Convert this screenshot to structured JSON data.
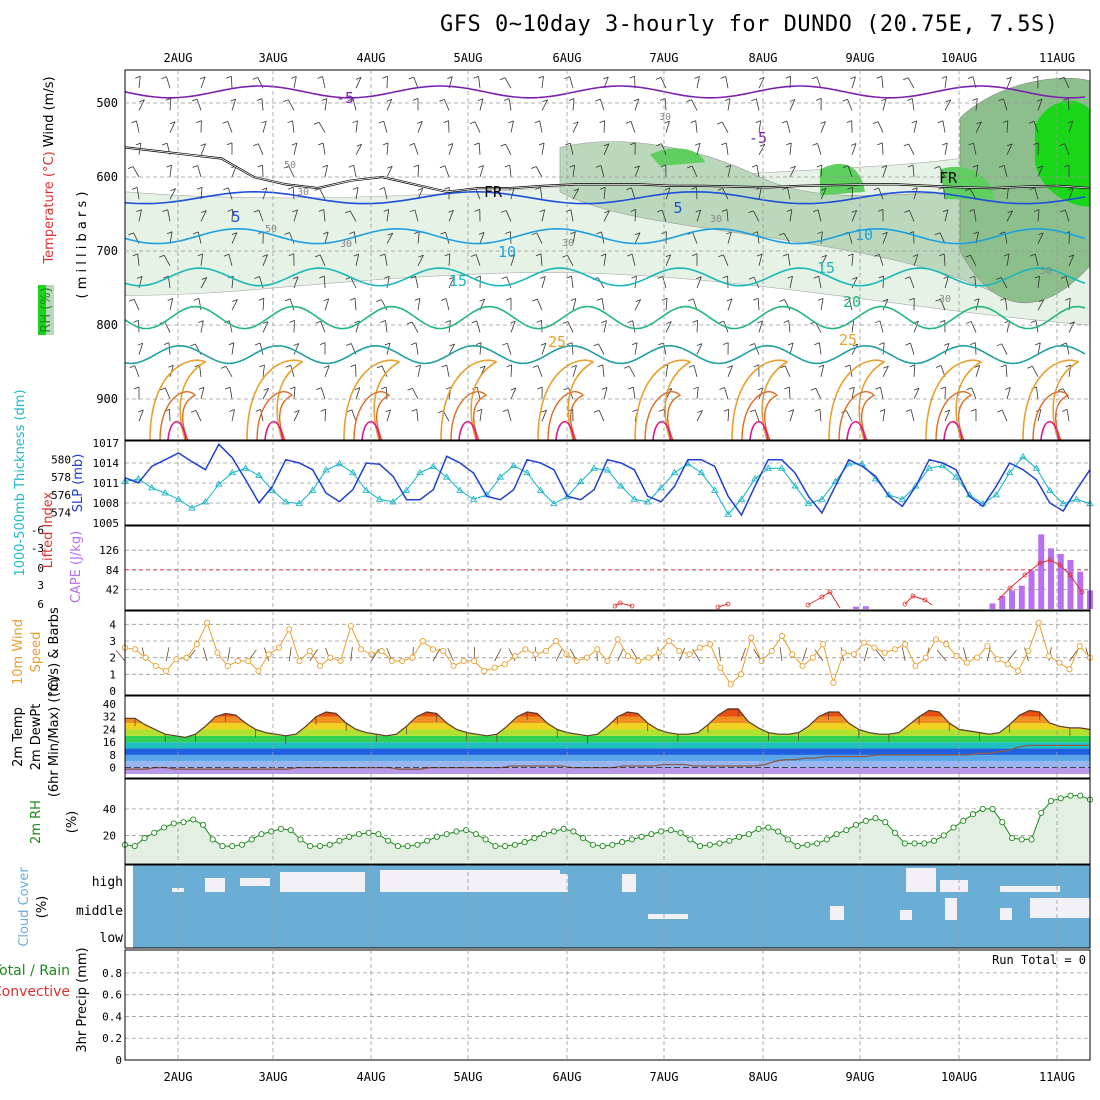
{
  "title": "GFS 0~10day 3-hourly for DUNDO (20.75E, 7.5S)",
  "dates": [
    "2AUG",
    "3AUG",
    "4AUG",
    "5AUG",
    "6AUG",
    "7AUG",
    "8AUG",
    "9AUG",
    "10AUG",
    "11AUG"
  ],
  "colors": {
    "purple": "#7a1fb0",
    "blue": "#1f4fd8",
    "cyan": "#1ea0e0",
    "teal": "#18b8b8",
    "green": "#1fb87a",
    "orange": "#e8a030",
    "magenta": "#e0188a",
    "rh_light": "#e6f2e6",
    "rh_mid": "#bcd8bc",
    "rh_dark": "#8cbf8c",
    "rh_bright": "#19d619",
    "slp_line": "#1f3fd0",
    "thick_line": "#20b8c8",
    "cape_bar": "#b870f0",
    "li_line": "#e03030",
    "wind_line": "#e8a030",
    "barb": "#6a4a2a",
    "rh2m_line": "#1a8a1a",
    "cloud": "#6aaed6",
    "dew_line": "#8a5a4a"
  },
  "chart_data": [
    {
      "type": "line",
      "panel": "upper_air",
      "ylabel_parts": [
        "RH (%)",
        "Temperature (°C)",
        "Wind (m/s)",
        "( m i l l i b a r s )"
      ],
      "yticks": [
        500,
        600,
        700,
        800,
        900
      ],
      "ylim": [
        950,
        450
      ],
      "contour_labels": [
        "-5",
        "-5",
        "FR",
        "FR",
        "5",
        "5",
        "10",
        "10",
        "15",
        "15",
        "20",
        "25",
        "25",
        "30",
        "30",
        "30",
        "30",
        "30",
        "30",
        "50",
        "50",
        "50"
      ],
      "freezing_level_mb": [
        560,
        565,
        570,
        575,
        600,
        610,
        615,
        605,
        600,
        610,
        620,
        615,
        615,
        612,
        610,
        610,
        610,
        612,
        612,
        613,
        614,
        612,
        611,
        610,
        610,
        612,
        614,
        615,
        613,
        612,
        615
      ]
    },
    {
      "type": "line",
      "panel": "slp_thickness",
      "ylabel": "SLP (mb)",
      "ylabel2": "1000-500mb Thickness (dm)",
      "yticks_left": [
        574,
        576,
        578,
        580
      ],
      "yticks_right": [
        1005,
        1008,
        1011,
        1014,
        1017
      ],
      "series": [
        {
          "name": "SLP (mb)",
          "values": [
            1011.8,
            1011,
            1013.5,
            1014.5,
            1015.5,
            1014.2,
            1013,
            1016.8,
            1014.8,
            1011.5,
            1008,
            1010.5,
            1014.5,
            1014,
            1013,
            1009.5,
            1008.2,
            1010,
            1014,
            1013.8,
            1012,
            1008.5,
            1008.5,
            1010,
            1015,
            1014,
            1012.5,
            1009,
            1008.5,
            1010,
            1014.5,
            1014,
            1013,
            1009,
            1008.5,
            1010,
            1014.5,
            1014,
            1013,
            1009,
            1008.2,
            1010.5,
            1014.5,
            1014.5,
            1013.5,
            1009,
            1006.2,
            1010.5,
            1014.5,
            1014.5,
            1012.5,
            1009,
            1006.5,
            1010.5,
            1014.5,
            1013.5,
            1012,
            1009,
            1007.5,
            1010.5,
            1014.5,
            1014,
            1013,
            1009,
            1007.5,
            1010.5,
            1014,
            1013,
            1011.5,
            1008,
            1006.8,
            1010,
            1013
          ]
        },
        {
          "name": "1000-500mb Thickness (dm)",
          "values": [
            577.5,
            577.8,
            576.8,
            576.2,
            575.5,
            574.5,
            575.2,
            577.2,
            578.5,
            579,
            578.2,
            576.5,
            575.2,
            575,
            576.5,
            578.8,
            579.5,
            578.5,
            576.5,
            575.5,
            575.2,
            576.5,
            578.5,
            579.2,
            578,
            576.5,
            575.5,
            576,
            578,
            579.3,
            578.5,
            576.5,
            575,
            575.8,
            577.5,
            579,
            578.8,
            577,
            575.5,
            575.2,
            576.8,
            578.5,
            579.5,
            578.5,
            576.5,
            573.8,
            575.5,
            577.8,
            579,
            579,
            577,
            575,
            575.5,
            577.5,
            579.5,
            579.5,
            577.8,
            576,
            575.5,
            577,
            579,
            579.3,
            578,
            576,
            575,
            576,
            578.5,
            580.3,
            579,
            576.5,
            575,
            575.5,
            575
          ]
        }
      ]
    },
    {
      "type": "bar",
      "panel": "cape_li",
      "ylabel": "CAPE (J/kg)",
      "ylabel2": "Lifted Index",
      "yticks_left": [
        "6",
        "3",
        "0",
        "-3",
        "-6"
      ],
      "yticks_right": [
        42,
        84,
        126
      ],
      "series": [
        {
          "name": "CAPE (J/kg)",
          "values": [
            0,
            0,
            0,
            0,
            0,
            0,
            0,
            0,
            0,
            0,
            0,
            0,
            0,
            0,
            0,
            0,
            0,
            0,
            0,
            0,
            0,
            0,
            0,
            0,
            0,
            0,
            0,
            0,
            0,
            0,
            0,
            0,
            0,
            0,
            0,
            0,
            0,
            0,
            0,
            0,
            0,
            0,
            0,
            0,
            0,
            0,
            0,
            0,
            0,
            0,
            0,
            0,
            0,
            0,
            0,
            0,
            0,
            0,
            0,
            0,
            0,
            0,
            0,
            0,
            0,
            0,
            0,
            0,
            0,
            0,
            0,
            0,
            0,
            0,
            0,
            5,
            6,
            0,
            0,
            0,
            0,
            0,
            0,
            0,
            0,
            0,
            0,
            0,
            0,
            12,
            28,
            40,
            50,
            83,
            160,
            130,
            118,
            105,
            80,
            40
          ]
        },
        {
          "name": "Lifted Index",
          "values": []
        }
      ]
    },
    {
      "type": "line",
      "panel": "wind10m",
      "ylabel": "10m Wind Speed (m/s) & Barbs",
      "yticks": [
        0,
        1,
        2,
        3,
        4
      ],
      "series": [
        {
          "name": "10m Wind Speed",
          "values": [
            2.6,
            2.5,
            2,
            1.5,
            1.2,
            1.9,
            2,
            2.8,
            4.1,
            2.3,
            1.5,
            1.8,
            1.8,
            1.2,
            2.2,
            2.6,
            3.7,
            1.8,
            2.4,
            1.5,
            2,
            1.8,
            3.9,
            2.5,
            2.2,
            2.4,
            1.8,
            1.8,
            2,
            3,
            2.5,
            2.4,
            1.5,
            1.8,
            1.8,
            1.2,
            1.4,
            1.6,
            2.1,
            2.5,
            2.2,
            2.4,
            3,
            2.2,
            1.8,
            2,
            2.5,
            1.8,
            3.1,
            2.1,
            1.8,
            2,
            2.3,
            3,
            2.4,
            2.2,
            2.6,
            2.8,
            1.4,
            0.4,
            1,
            3.2,
            1.8,
            2.4,
            3.3,
            2.2,
            1.5,
            2,
            2.8,
            0.5,
            2.3,
            2.2,
            2.9,
            2.6,
            2.3,
            2.5,
            2.8,
            1.5,
            2,
            3.1,
            2.8,
            2.1,
            1.7,
            2,
            2.7,
            1.9,
            1.6,
            1.2,
            2.4,
            4.1,
            2.1,
            1.7,
            1.3,
            2.7,
            2
          ]
        }
      ]
    },
    {
      "type": "area",
      "panel": "temp2m",
      "ylabel": "2m Temp 2m DewPt (6hr Min/Max) (°C)",
      "yticks": [
        0,
        8,
        16,
        24,
        32,
        40
      ],
      "series": [
        {
          "name": "2m Temp",
          "values": [
            31,
            31,
            27,
            24,
            21,
            20,
            19,
            21,
            26,
            32,
            34,
            33,
            28,
            24,
            22,
            21,
            20,
            21,
            26,
            32,
            35,
            34,
            28,
            24,
            22,
            21,
            20,
            21,
            26,
            32,
            35,
            34,
            28,
            24,
            22,
            21,
            20,
            21,
            26,
            32,
            35,
            34,
            28,
            24,
            22,
            21,
            20,
            21,
            26,
            32,
            35,
            34,
            28,
            24,
            22,
            21,
            21,
            22,
            27,
            33,
            37,
            37,
            29,
            25,
            22,
            21,
            21,
            22,
            26,
            32,
            35,
            35,
            28,
            24,
            22,
            21,
            21,
            22,
            27,
            32,
            36,
            35,
            28,
            24,
            23,
            22,
            21,
            22,
            27,
            33,
            36,
            35,
            28,
            26,
            25,
            25,
            24
          ]
        },
        {
          "name": "2m DewPt",
          "values": [
            -1,
            -1,
            -1,
            0,
            0,
            -1,
            -1,
            -1,
            -1,
            -1,
            -1,
            -1,
            -1,
            -1,
            -1,
            -1,
            -1,
            0,
            0,
            0,
            0,
            0,
            0,
            0,
            0,
            0,
            0,
            -1,
            -1,
            -1,
            0,
            0,
            0,
            0,
            0,
            0,
            0,
            0,
            1,
            1,
            1,
            1,
            1,
            1,
            0,
            0,
            0,
            0,
            0,
            1,
            1,
            1,
            1,
            2,
            2,
            2,
            1,
            1,
            1,
            1,
            1,
            1,
            1,
            2,
            4,
            5,
            5,
            6,
            6,
            7,
            7,
            7,
            7,
            7,
            8,
            8,
            8,
            8,
            8,
            8,
            8,
            8,
            8,
            8,
            9,
            9,
            10,
            11,
            13,
            14,
            14,
            14,
            14,
            14,
            14,
            14
          ]
        }
      ]
    },
    {
      "type": "area",
      "panel": "rh2m",
      "ylabel": "2m RH (%)",
      "yticks": [
        20,
        40
      ],
      "series": [
        {
          "name": "2m RH",
          "values": [
            13,
            12,
            18,
            22,
            26,
            29,
            30,
            32,
            28,
            17,
            12,
            12,
            13,
            17,
            21,
            23,
            25,
            24,
            17,
            12,
            12,
            13,
            16,
            19,
            21,
            22,
            21,
            16,
            12,
            12,
            13,
            16,
            19,
            21,
            23,
            24,
            21,
            17,
            12,
            12,
            13,
            15,
            18,
            21,
            23,
            25,
            23,
            18,
            13,
            12,
            13,
            15,
            17,
            19,
            21,
            23,
            24,
            22,
            17,
            12,
            13,
            14,
            16,
            19,
            21,
            25,
            26,
            23,
            17,
            12,
            13,
            14,
            17,
            21,
            24,
            28,
            31,
            33,
            30,
            22,
            14,
            14,
            14,
            16,
            20,
            26,
            31,
            36,
            40,
            40,
            30,
            18,
            17,
            17,
            37,
            46,
            48,
            50,
            50,
            47
          ]
        }
      ]
    },
    {
      "type": "bar",
      "panel": "cloud_cover",
      "ylabel": "Cloud Cover (%)",
      "yticks": [
        "high",
        "middle",
        "low"
      ]
    },
    {
      "type": "bar",
      "panel": "precip",
      "ylabel": "3hr Precip (mm)",
      "legend_parts": [
        "Total / Rain",
        "Convective"
      ],
      "yticks": [
        0,
        0.2,
        0.4,
        0.6,
        0.8
      ],
      "annotation": "Run Total = 0",
      "series": [
        {
          "name": "Total",
          "values": []
        },
        {
          "name": "Convective",
          "values": []
        }
      ]
    }
  ]
}
